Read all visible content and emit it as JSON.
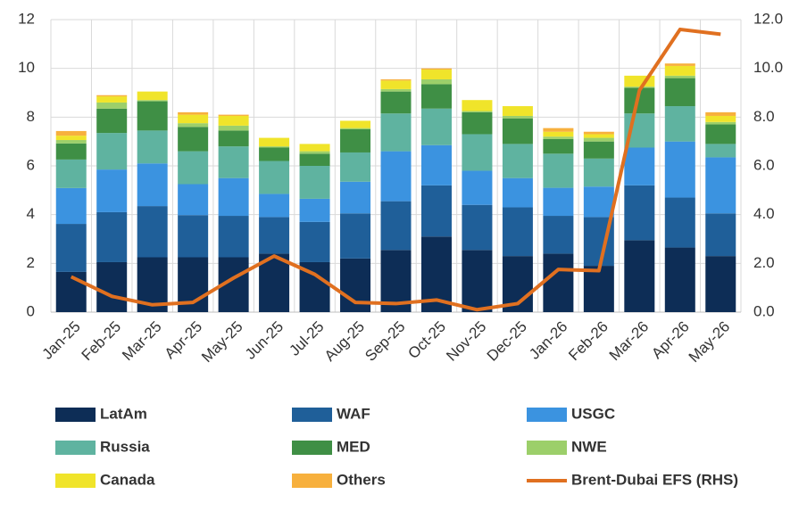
{
  "chart_data": {
    "type": "bar",
    "stacked": true,
    "categories": [
      "Jan-25",
      "Feb-25",
      "Mar-25",
      "Apr-25",
      "May-25",
      "Jun-25",
      "Jul-25",
      "Aug-25",
      "Sep-25",
      "Oct-25",
      "Nov-25",
      "Dec-25",
      "Jan-26",
      "Feb-26",
      "Mar-26",
      "Apr-26",
      "May-26"
    ],
    "series": [
      {
        "name": "LatAm",
        "color": "#0d2d56",
        "values": [
          1.65,
          2.05,
          2.25,
          2.25,
          2.25,
          2.4,
          2.05,
          2.2,
          2.55,
          3.1,
          2.55,
          2.3,
          2.4,
          1.9,
          2.95,
          2.65,
          2.3
        ]
      },
      {
        "name": "WAF",
        "color": "#1f5f99",
        "values": [
          1.97,
          2.05,
          2.1,
          1.73,
          1.7,
          1.5,
          1.65,
          1.85,
          2.0,
          2.1,
          1.85,
          2.0,
          1.55,
          2.0,
          2.25,
          2.05,
          1.75
        ]
      },
      {
        "name": "USGC",
        "color": "#3b93e0",
        "values": [
          1.47,
          1.75,
          1.75,
          1.27,
          1.55,
          0.95,
          0.95,
          1.3,
          2.05,
          1.65,
          1.4,
          1.2,
          1.15,
          1.25,
          1.55,
          2.3,
          2.3
        ]
      },
      {
        "name": "Russia",
        "color": "#5fb3a0",
        "values": [
          1.17,
          1.5,
          1.35,
          1.35,
          1.3,
          1.35,
          1.35,
          1.2,
          1.55,
          1.5,
          1.5,
          1.4,
          1.4,
          1.15,
          1.4,
          1.45,
          0.55
        ]
      },
      {
        "name": "MED",
        "color": "#3f8f45",
        "values": [
          0.66,
          1.0,
          1.2,
          1.0,
          0.65,
          0.55,
          0.5,
          0.95,
          0.9,
          1.0,
          0.9,
          1.05,
          0.6,
          0.7,
          1.05,
          1.15,
          0.8
        ]
      },
      {
        "name": "NWE",
        "color": "#9ccf6a",
        "values": [
          0.14,
          0.25,
          0.05,
          0.15,
          0.2,
          0.05,
          0.1,
          0.05,
          0.1,
          0.2,
          0.05,
          0.1,
          0.1,
          0.15,
          0.05,
          0.1,
          0.1
        ]
      },
      {
        "name": "Canada",
        "color": "#f0e42a",
        "values": [
          0.18,
          0.25,
          0.35,
          0.35,
          0.4,
          0.35,
          0.3,
          0.3,
          0.35,
          0.4,
          0.45,
          0.4,
          0.2,
          0.15,
          0.45,
          0.4,
          0.25
        ]
      },
      {
        "name": "Others",
        "color": "#f7b03d",
        "values": [
          0.19,
          0.05,
          0,
          0.1,
          0.05,
          0,
          0,
          0,
          0.05,
          0.05,
          0,
          0,
          0.15,
          0.1,
          0,
          0.1,
          0.15
        ]
      },
      {
        "name": "Brent-Dubai EFS (RHS)",
        "color": "#e07020",
        "type": "line",
        "axis": "y2",
        "values": [
          1.45,
          0.65,
          0.3,
          0.4,
          1.4,
          2.3,
          1.55,
          0.4,
          0.35,
          0.5,
          0.1,
          0.35,
          1.75,
          1.7,
          9.1,
          11.6,
          11.4
        ]
      }
    ],
    "ylim": [
      0,
      12
    ],
    "yticks": [
      0,
      2,
      4,
      6,
      8,
      10,
      12
    ],
    "y2lim": [
      0,
      12
    ],
    "y2ticks": [
      {
        "value": 0,
        "label": "0.0"
      },
      {
        "value": 2,
        "label": "2.0"
      },
      {
        "value": 4,
        "label": "4.0"
      },
      {
        "value": 6,
        "label": "6.0"
      },
      {
        "value": 8,
        "label": "8.0"
      },
      {
        "value": 10,
        "label": "10.0"
      },
      {
        "value": 12,
        "label": "12.0"
      }
    ],
    "grid": true
  }
}
